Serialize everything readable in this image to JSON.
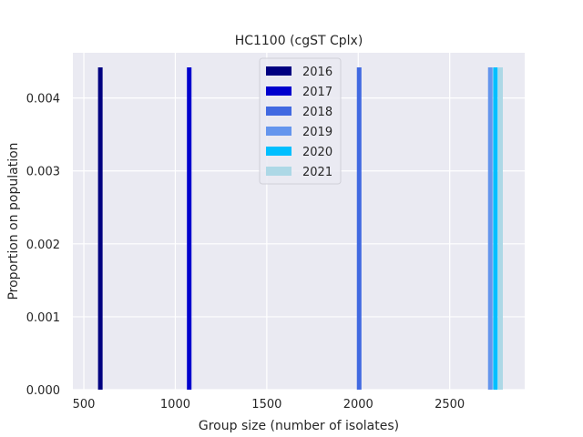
{
  "chart_data": {
    "type": "bar",
    "title": "HC1100 (cgST Cplx)",
    "xlabel": "Group size (number of isolates)",
    "ylabel": "Proportion on population",
    "xlim": [
      440,
      2910
    ],
    "ylim": [
      0,
      0.00462
    ],
    "xticks": [
      500,
      1000,
      1500,
      2000,
      2500
    ],
    "xtick_labels": [
      "500",
      "1000",
      "1500",
      "2000",
      "2500"
    ],
    "yticks": [
      0,
      0.001,
      0.002,
      0.003,
      0.004
    ],
    "ytick_labels": [
      "0.000",
      "0.001",
      "0.002",
      "0.003",
      "0.004"
    ],
    "grid": true,
    "legend_position": "top-center",
    "bar_width": 25,
    "series": [
      {
        "name": "2016",
        "color": "#000080",
        "x": 590,
        "value": 0.00442
      },
      {
        "name": "2017",
        "color": "#0000cd",
        "x": 1076,
        "value": 0.00442
      },
      {
        "name": "2018",
        "color": "#4169e1",
        "x": 2005,
        "value": 0.00442
      },
      {
        "name": "2019",
        "color": "#6495ed",
        "x": 2722,
        "value": 0.00442
      },
      {
        "name": "2020",
        "color": "#00bfff",
        "x": 2750,
        "value": 0.00442
      },
      {
        "name": "2021",
        "color": "#add8e6",
        "x": 2778,
        "value": 0.00442
      }
    ]
  }
}
